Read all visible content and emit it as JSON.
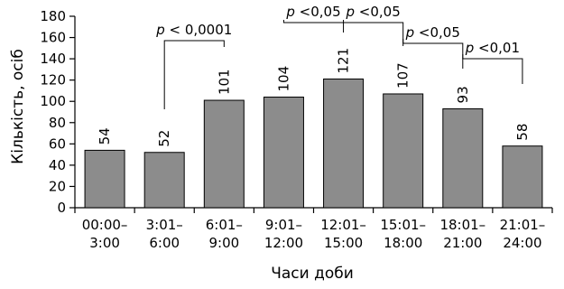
{
  "chart_data": {
    "type": "bar",
    "xlabel": "Часи доби",
    "ylabel": "Кількість, осіб",
    "ylim": [
      0,
      180
    ],
    "yticks": [
      0,
      20,
      40,
      60,
      80,
      100,
      120,
      140,
      160,
      180
    ],
    "categories": [
      [
        "00:00–",
        "3:00"
      ],
      [
        "3:01–",
        "6:00"
      ],
      [
        "6:01–",
        "9:00"
      ],
      [
        "9:01–",
        "12:00"
      ],
      [
        "12:01–",
        "15:00"
      ],
      [
        "15:01–",
        "18:00"
      ],
      [
        "18:01–",
        "21:00"
      ],
      [
        "21:01–",
        "24:00"
      ]
    ],
    "values": [
      54,
      52,
      101,
      104,
      121,
      107,
      93,
      58
    ],
    "bar_color": "#8c8c8c",
    "grid": false,
    "annotations": [
      {
        "from": 1,
        "to": 2,
        "p": "p",
        "text": " < 0,0001"
      },
      {
        "from": 3,
        "to": 4,
        "p": "p",
        "text": " <0,05"
      },
      {
        "from": 4,
        "to": 5,
        "p": "p",
        "text": " <0,05"
      },
      {
        "from": 5,
        "to": 6,
        "p": "p",
        "text": " <0,05"
      },
      {
        "from": 6,
        "to": 7,
        "p": "p",
        "text": " <0,01"
      }
    ]
  }
}
